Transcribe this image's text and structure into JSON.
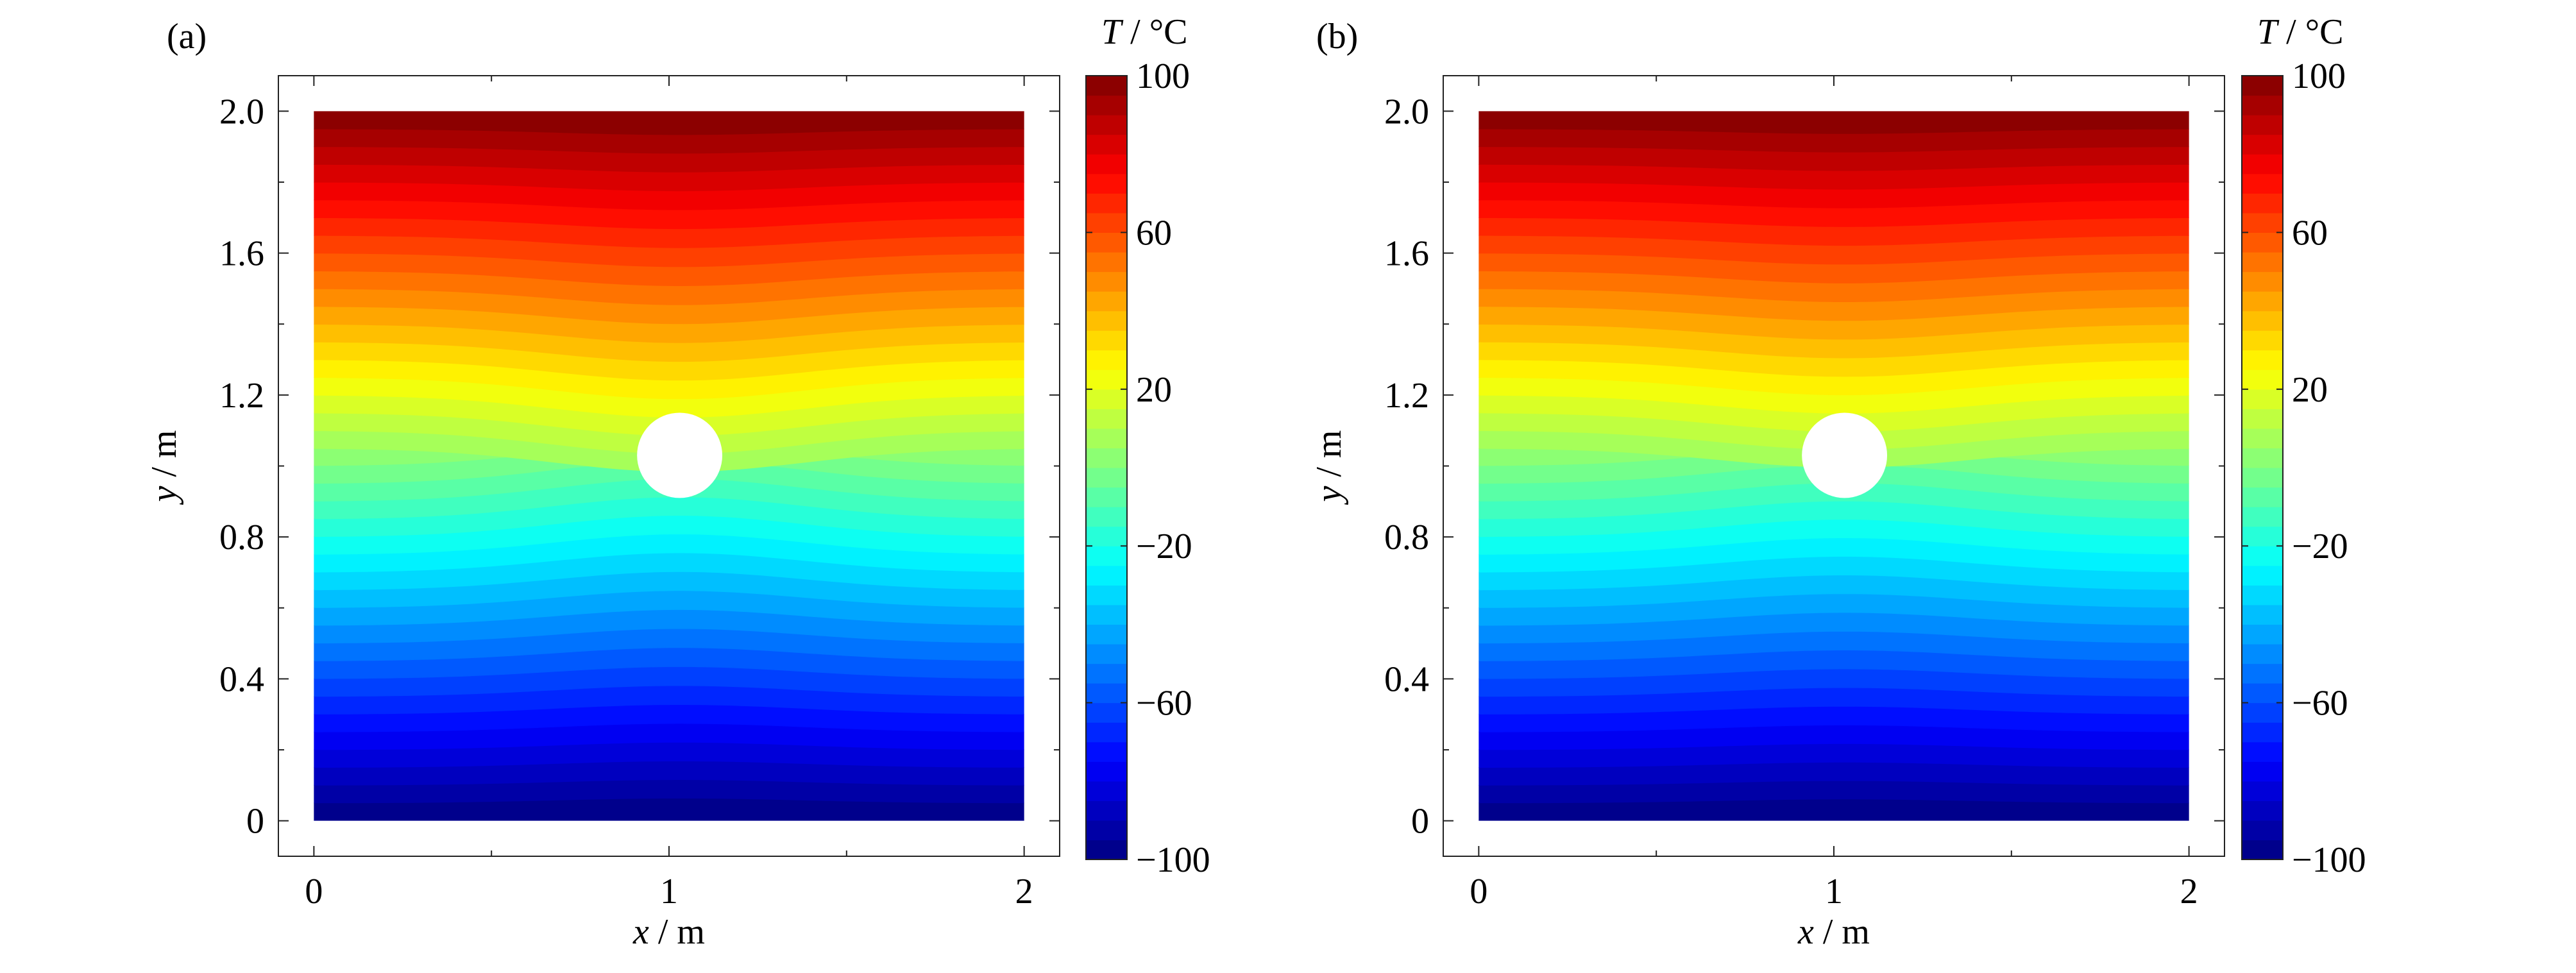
{
  "chart_data": [
    {
      "panel_label": "(a)",
      "type": "heatmap",
      "xlabel": {
        "var": "x",
        "unit": "m"
      },
      "ylabel": {
        "var": "y",
        "unit": "m"
      },
      "x_ticks": [
        "0",
        "1",
        "2"
      ],
      "x_tick_values": [
        0,
        1,
        2
      ],
      "y_ticks": [
        "0",
        "0.4",
        "0.8",
        "1.2",
        "1.6",
        "2.0"
      ],
      "y_tick_values": [
        0,
        0.4,
        0.8,
        1.2,
        1.6,
        2.0
      ],
      "xlim": [
        -0.1,
        2.1
      ],
      "ylim": [
        -0.1,
        2.1
      ],
      "domain": {
        "x": [
          0,
          2
        ],
        "y": [
          0,
          2
        ]
      },
      "hole": {
        "shape": "circle",
        "center": [
          1.03,
          1.03
        ],
        "radius": 0.12
      },
      "field": {
        "t_bottom": -100,
        "t_top": 100,
        "levels": 40,
        "hole_distortion": 0.55
      },
      "colorbar": {
        "label_var": "T",
        "label_unit": "°C",
        "range": [
          -100,
          100
        ],
        "ticks": [
          "100",
          "60",
          "20",
          "−20",
          "−60",
          "−100"
        ],
        "tick_values": [
          100,
          60,
          20,
          -20,
          -60,
          -100
        ],
        "colormap": "jet"
      }
    },
    {
      "panel_label": "(b)",
      "type": "heatmap",
      "xlabel": {
        "var": "x",
        "unit": "m"
      },
      "ylabel": {
        "var": "y",
        "unit": "m"
      },
      "x_ticks": [
        "0",
        "1",
        "2"
      ],
      "x_tick_values": [
        0,
        1,
        2
      ],
      "y_ticks": [
        "0",
        "0.4",
        "0.8",
        "1.2",
        "1.6",
        "2.0"
      ],
      "y_tick_values": [
        0,
        0.4,
        0.8,
        1.2,
        1.6,
        2.0
      ],
      "xlim": [
        -0.1,
        2.1
      ],
      "ylim": [
        -0.1,
        2.1
      ],
      "domain": {
        "x": [
          0,
          2
        ],
        "y": [
          0,
          2
        ]
      },
      "hole": {
        "shape": "circle",
        "center": [
          1.03,
          1.03
        ],
        "radius": 0.12
      },
      "field": {
        "t_bottom": -100,
        "t_top": 100,
        "levels": 40,
        "hole_distortion": 0.45
      },
      "colorbar": {
        "label_var": "T",
        "label_unit": "°C",
        "range": [
          -100,
          100
        ],
        "ticks": [
          "100",
          "60",
          "20",
          "−20",
          "−60",
          "−100"
        ],
        "tick_values": [
          100,
          60,
          20,
          -20,
          -60,
          -100
        ],
        "colormap": "jet"
      }
    }
  ]
}
